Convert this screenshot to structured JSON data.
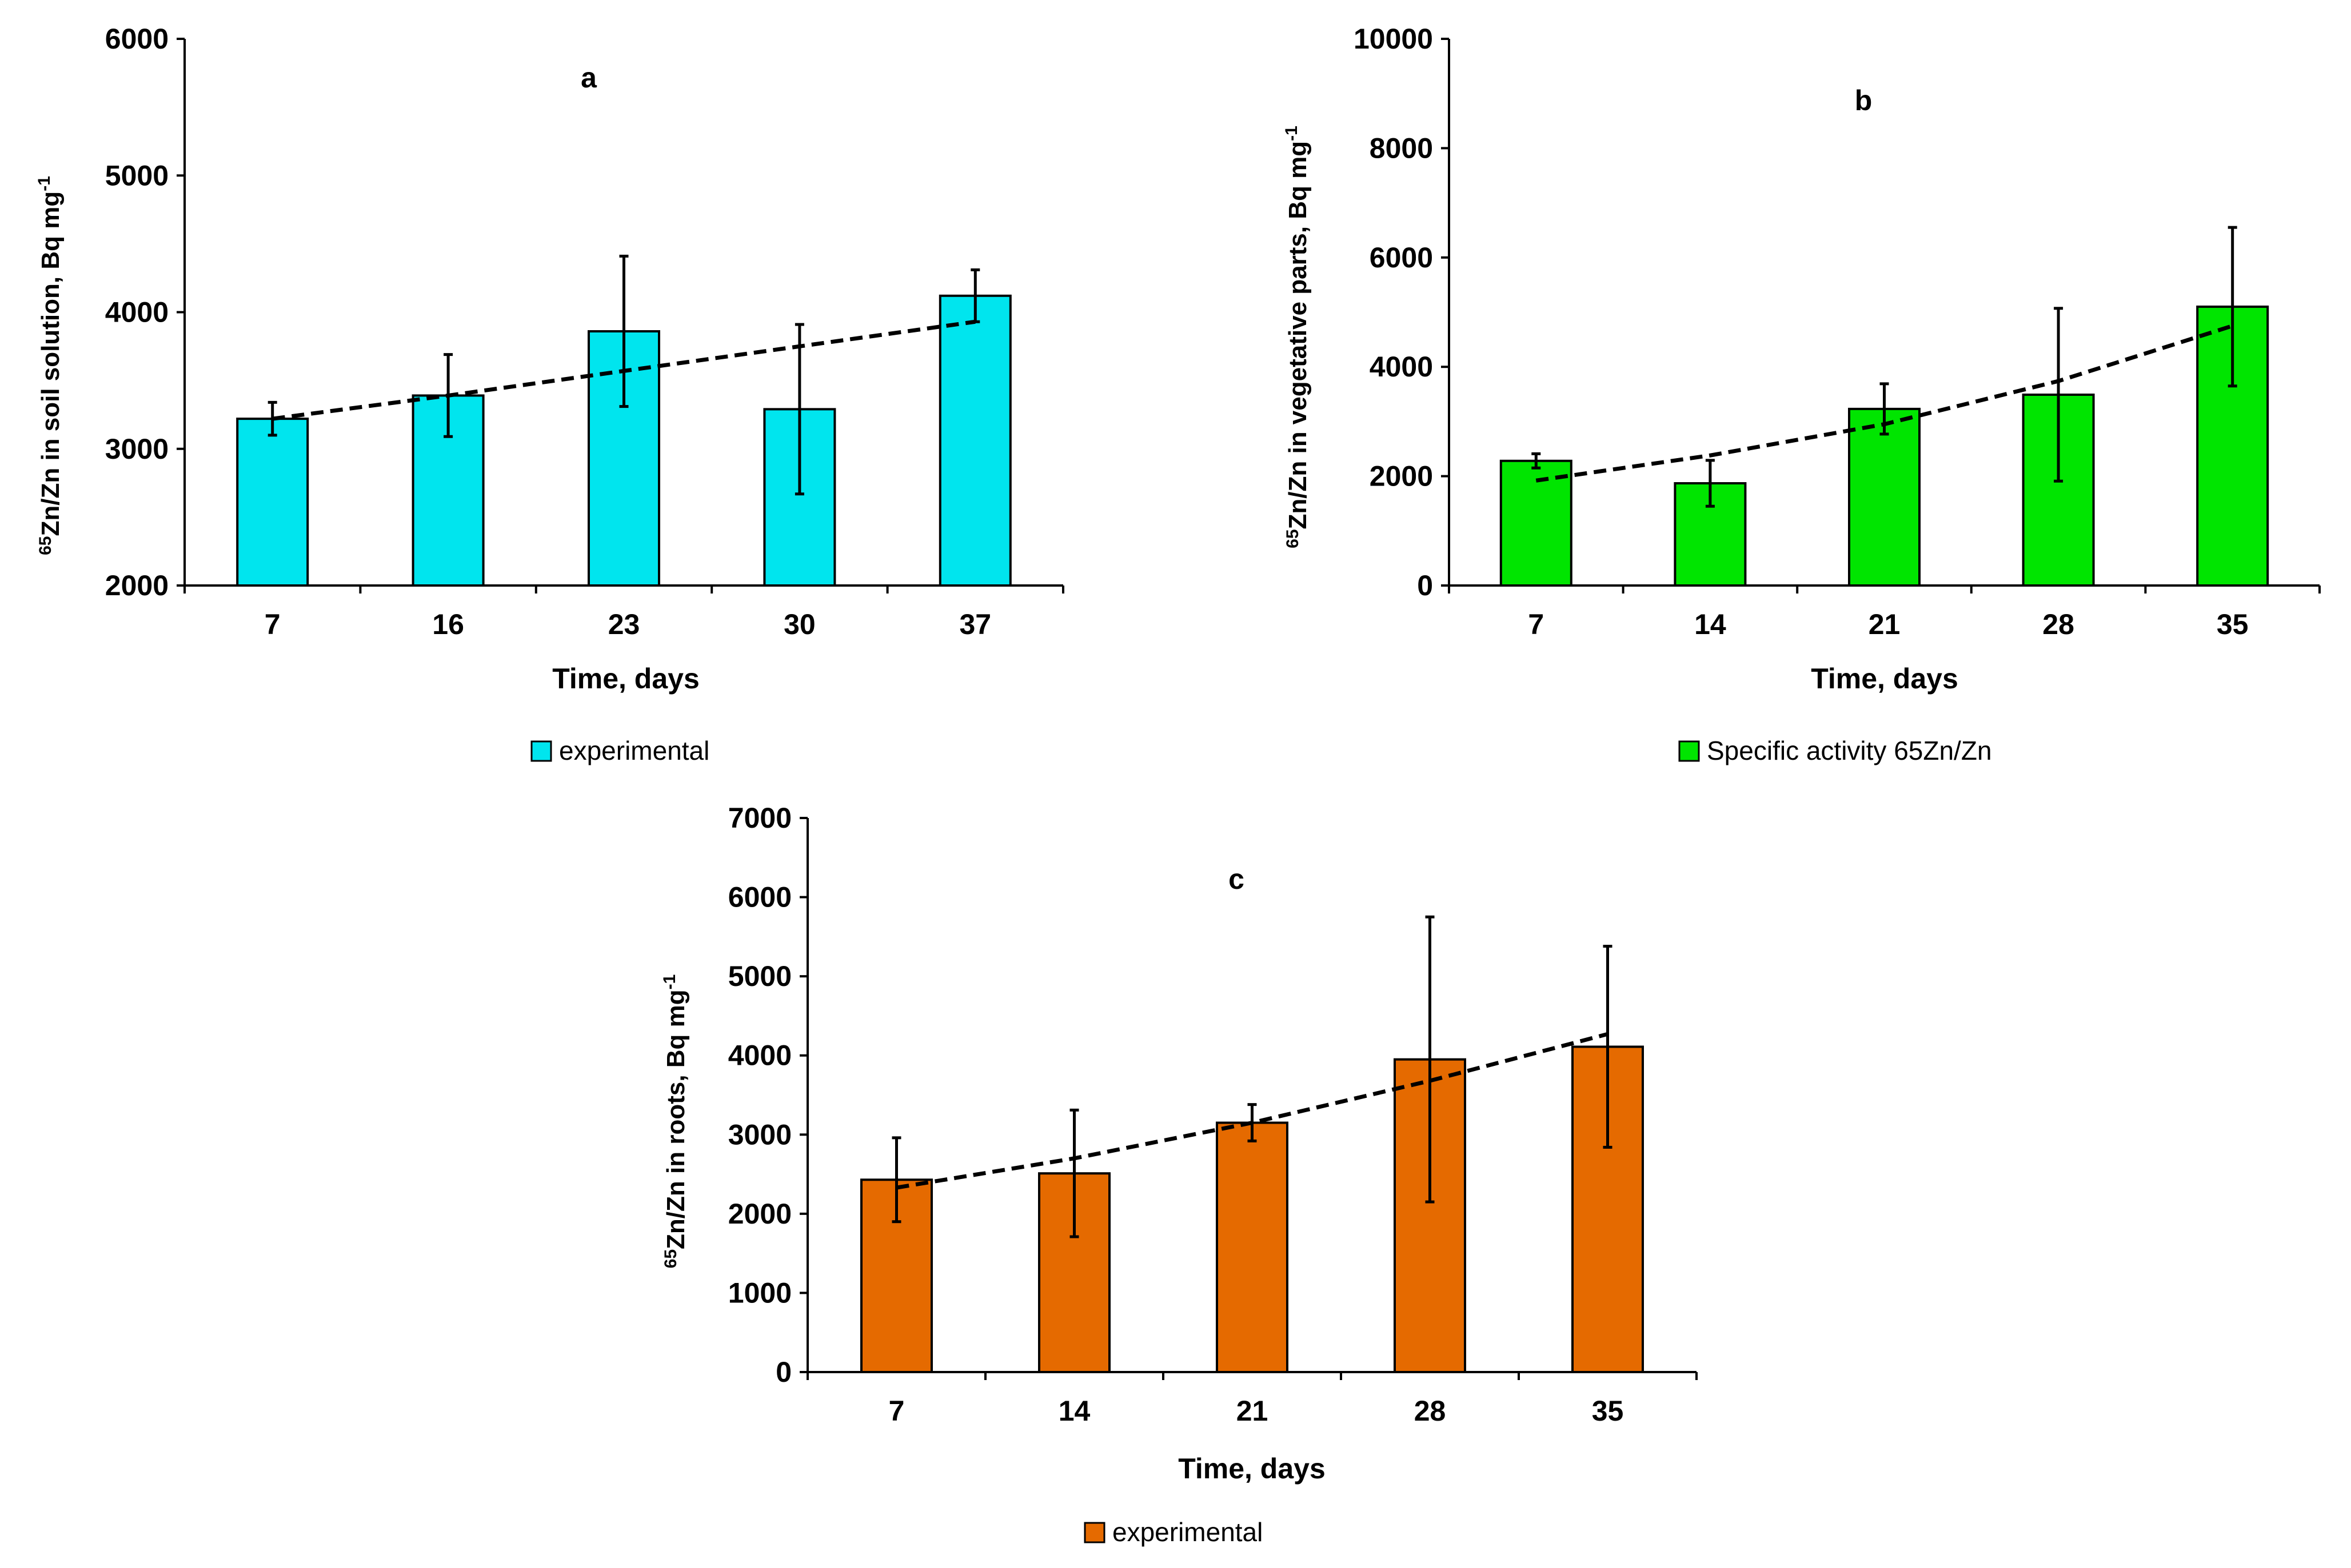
{
  "chart_data": [
    {
      "type": "bar",
      "panel": "a",
      "categories": [
        "7",
        "16",
        "23",
        "30",
        "37"
      ],
      "values": [
        3220,
        3390,
        3860,
        3290,
        4120
      ],
      "error": [
        120,
        300,
        550,
        620,
        190
      ],
      "trend": [
        3220,
        3390,
        3570,
        3750,
        3930
      ],
      "ylim": [
        2000,
        6000
      ],
      "yticks": [
        2000,
        3000,
        4000,
        5000,
        6000
      ],
      "xlabel": "Time, days",
      "ylabel": {
        "sup": "65",
        "main": "Zn/Zn in soil solution, Bq mg",
        "exp": "-1"
      },
      "legend": "experimental",
      "color": "#00E5EE"
    },
    {
      "type": "bar",
      "panel": "b",
      "categories": [
        "7",
        "14",
        "21",
        "28",
        "35"
      ],
      "values": [
        2280,
        1870,
        3230,
        3490,
        5100
      ],
      "error": [
        130,
        420,
        460,
        1580,
        1450
      ],
      "trend": [
        1920,
        2380,
        2950,
        3740,
        4750
      ],
      "ylim": [
        0,
        10000
      ],
      "yticks": [
        0,
        2000,
        4000,
        6000,
        8000,
        10000
      ],
      "xlabel": "Time,  days",
      "ylabel": {
        "sup": "65",
        "main": "Zn/Zn in vegetative parts, Bq mg",
        "exp": "-1"
      },
      "legend": "Specific activity 65Zn/Zn",
      "color": "#00E500"
    },
    {
      "type": "bar",
      "panel": "c",
      "categories": [
        "7",
        "14",
        "21",
        "28",
        "35"
      ],
      "values": [
        2430,
        2510,
        3150,
        3950,
        4110
      ],
      "error": [
        530,
        800,
        230,
        1800,
        1270
      ],
      "trend": [
        2330,
        2700,
        3150,
        3680,
        4270
      ],
      "ylim": [
        0,
        7000
      ],
      "yticks": [
        0,
        1000,
        2000,
        3000,
        4000,
        5000,
        6000,
        7000
      ],
      "xlabel": "Time,  days",
      "ylabel": {
        "sup": "65",
        "main": "Zn/Zn in roots, Bq mg",
        "exp": "-1"
      },
      "legend": "experimental",
      "color": "#E56A00"
    }
  ]
}
